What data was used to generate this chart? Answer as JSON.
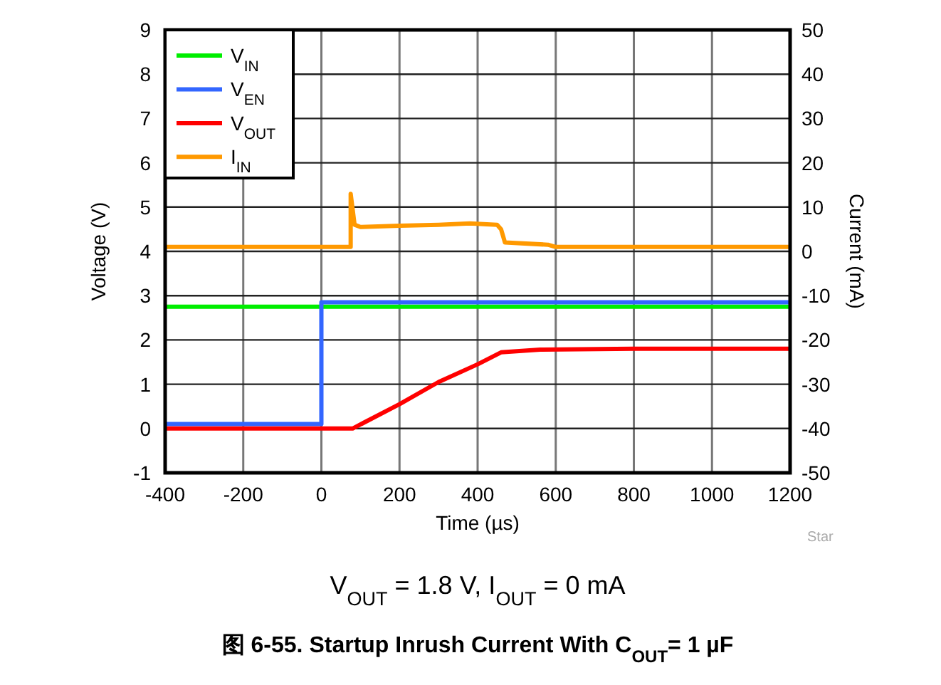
{
  "chart_data": {
    "type": "line",
    "title": "图 6-55. Startup Inrush Current With C$_{OUT}$= 1 µF",
    "subtitle": "V$_{OUT}$ = 1.8 V, I$_{OUT}$ = 0 mA",
    "xlabel": "Time (µs)",
    "ylabel": "Voltage (V)",
    "y2label": "Current (mA)",
    "xlim": [
      -400,
      1200
    ],
    "xticks": [
      -400,
      -200,
      0,
      200,
      400,
      600,
      800,
      1000,
      1200
    ],
    "ylim": [
      -1,
      9
    ],
    "yticks": [
      -1,
      0,
      1,
      2,
      3,
      4,
      5,
      6,
      7,
      8,
      9
    ],
    "y2lim": [
      -50,
      50
    ],
    "y2ticks": [
      -50,
      -40,
      -30,
      -20,
      -10,
      0,
      10,
      20,
      30,
      40,
      50
    ],
    "grid": true,
    "legend": "top left",
    "annotations": [
      "Star"
    ],
    "series": [
      {
        "name": "V$_{IN}$",
        "color": "#00ee00",
        "x": [
          -400,
          0,
          400,
          800,
          1200
        ],
        "values": [
          2.75,
          2.75,
          2.75,
          2.75,
          2.75
        ]
      },
      {
        "name": "V$_{EN}$",
        "color": "#3366ff",
        "x": [
          -400,
          0,
          0,
          400,
          800,
          1200
        ],
        "values": [
          0.1,
          0.1,
          2.85,
          2.85,
          2.85,
          2.85
        ]
      },
      {
        "name": "V$_{OUT}$",
        "color": "#ff0000",
        "x": [
          -400,
          0,
          80,
          200,
          300,
          400,
          460,
          560,
          800,
          1200
        ],
        "values": [
          0,
          0,
          0,
          0.55,
          1.05,
          1.45,
          1.72,
          1.78,
          1.8,
          1.8
        ]
      },
      {
        "name": "I$_{IN}$",
        "color": "#ff9900",
        "axis": "y2",
        "x": [
          -400,
          0,
          75,
          75,
          85,
          100,
          200,
          300,
          380,
          450,
          460,
          470,
          580,
          600,
          900,
          1200
        ],
        "values": [
          1,
          1,
          1,
          13,
          6,
          5.5,
          5.8,
          6,
          6.3,
          6,
          5,
          2,
          1.5,
          1,
          1,
          1
        ]
      }
    ]
  }
}
